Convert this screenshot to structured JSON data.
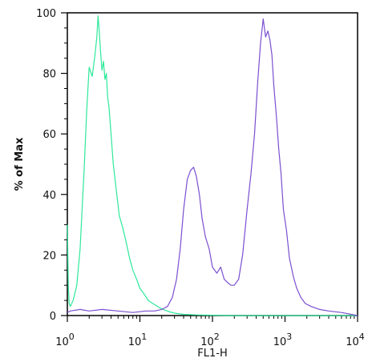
{
  "chart_data": {
    "type": "line",
    "title": "",
    "xlabel": "FL1-H",
    "ylabel": "% of Max",
    "xscale": "log",
    "xlim": [
      1,
      10000
    ],
    "ylim": [
      0,
      100
    ],
    "grid": false,
    "legend": "none",
    "x_ticks": [
      {
        "value": 1,
        "base": "10",
        "exp": "0"
      },
      {
        "value": 10,
        "base": "10",
        "exp": "1"
      },
      {
        "value": 100,
        "base": "10",
        "exp": "2"
      },
      {
        "value": 1000,
        "base": "10",
        "exp": "3"
      },
      {
        "value": 10000,
        "base": "10",
        "exp": "4"
      }
    ],
    "y_ticks": [
      {
        "value": 0,
        "label": "0"
      },
      {
        "value": 20,
        "label": "20"
      },
      {
        "value": 40,
        "label": "40"
      },
      {
        "value": 60,
        "label": "60"
      },
      {
        "value": 80,
        "label": "80"
      },
      {
        "value": 100,
        "label": "100"
      }
    ],
    "series": [
      {
        "color": "#2ee89a",
        "x": [
          1.0,
          1.01,
          1.03,
          1.06,
          1.1,
          1.2,
          1.35,
          1.5,
          1.7,
          1.85,
          2.0,
          2.2,
          2.4,
          2.55,
          2.65,
          2.75,
          2.85,
          3.0,
          3.15,
          3.3,
          3.45,
          3.6,
          3.75,
          4.0,
          4.3,
          4.7,
          5.2,
          5.8,
          6.5,
          7.2,
          8.0,
          9.0,
          10.0,
          11.5,
          13.0,
          15.0,
          17.0,
          19.0,
          22.0,
          26.0,
          30.0,
          40.0,
          60.0,
          100.0,
          200.0,
          500.0,
          1000.0,
          3000.0,
          10000.0
        ],
        "y": [
          30,
          24,
          10,
          4,
          3,
          5,
          10,
          22,
          48,
          68,
          82,
          79,
          86,
          92,
          99,
          94,
          88,
          81,
          84,
          78,
          80,
          72,
          69,
          60,
          50,
          42,
          33,
          29,
          24,
          19,
          15,
          12,
          9,
          7,
          5,
          4,
          3.2,
          2.5,
          1.8,
          1.2,
          0.8,
          0.4,
          0.2,
          0.1,
          0,
          0,
          0,
          0,
          0
        ]
      },
      {
        "color": "#7b4fd0",
        "x": [
          1.0,
          1.1,
          1.5,
          2.0,
          3.0,
          5.0,
          8.0,
          12.0,
          16.0,
          20.0,
          24.0,
          28.0,
          32.0,
          36.0,
          40.0,
          45.0,
          50.0,
          55.0,
          60.0,
          66.0,
          72.0,
          80.0,
          90.0,
          100.0,
          115.0,
          130.0,
          145.0,
          160.0,
          180.0,
          200.0,
          230.0,
          260.0,
          300.0,
          340.0,
          380.0,
          420.0,
          460.0,
          500.0,
          540.0,
          580.0,
          620.0,
          660.0,
          700.0,
          760.0,
          820.0,
          880.0,
          950.0,
          1050.0,
          1150.0,
          1300.0,
          1450.0,
          1650.0,
          1900.0,
          2300.0,
          3000.0,
          4000.0,
          6000.0,
          10000.0
        ],
        "y": [
          1,
          1.5,
          2,
          1.5,
          2,
          1.5,
          1,
          1.5,
          1.5,
          2,
          3,
          6,
          12,
          22,
          35,
          45,
          48,
          49,
          46,
          40,
          32,
          26,
          22,
          16,
          14,
          16,
          12,
          11,
          10,
          10,
          12,
          20,
          35,
          47,
          60,
          77,
          90,
          98,
          92,
          94,
          91,
          86,
          76,
          66,
          55,
          47,
          35,
          28,
          19,
          13,
          9,
          6,
          4,
          3,
          2,
          1.5,
          1,
          0
        ]
      }
    ]
  }
}
